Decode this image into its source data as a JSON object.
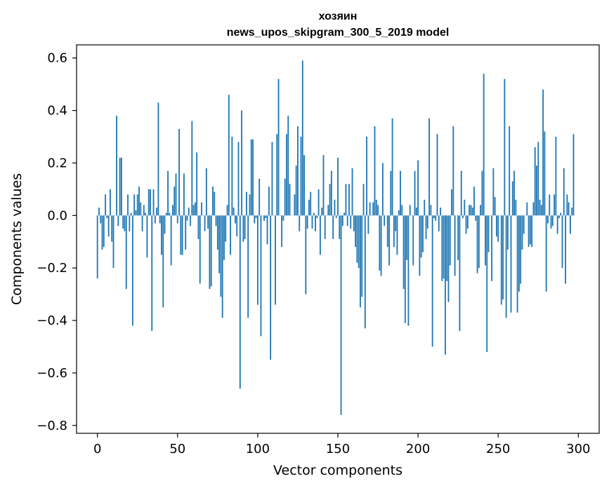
{
  "chart_data": {
    "type": "bar",
    "title": "хозяин",
    "subtitle": "news_upos_skipgram_300_5_2019 model",
    "xlabel": "Vector components",
    "ylabel": "Components values",
    "xlim": [
      -13,
      313
    ],
    "ylim": [
      -0.83,
      0.65
    ],
    "xticks": [
      0,
      50,
      100,
      150,
      200,
      250,
      300
    ],
    "xtick_labels": [
      "0",
      "50",
      "100",
      "150",
      "200",
      "250",
      "300"
    ],
    "yticks": [
      -0.8,
      -0.6,
      -0.4,
      -0.2,
      0.0,
      0.2,
      0.4,
      0.6
    ],
    "ytick_labels": [
      "−0.8",
      "−0.6",
      "−0.4",
      "−0.2",
      "0.0",
      "0.2",
      "0.4",
      "0.6"
    ],
    "bar_color": "#1f77b4",
    "series": [
      {
        "name": "хозяин",
        "x_start": 0,
        "values": [
          -0.24,
          0.03,
          -0.03,
          -0.13,
          -0.12,
          0.08,
          -0.01,
          -0.08,
          0.1,
          -0.1,
          -0.2,
          0.0,
          0.38,
          -0.04,
          0.22,
          0.22,
          -0.05,
          -0.06,
          -0.28,
          0.08,
          -0.06,
          0.01,
          -0.42,
          0.08,
          0.02,
          0.08,
          0.11,
          0.05,
          -0.06,
          0.04,
          0.01,
          -0.16,
          0.1,
          0.1,
          -0.44,
          0.1,
          -0.03,
          0.03,
          0.43,
          -0.03,
          -0.15,
          -0.35,
          -0.07,
          0.01,
          0.17,
          0.01,
          -0.19,
          0.04,
          0.11,
          0.16,
          -0.03,
          0.33,
          -0.15,
          -0.15,
          0.16,
          -0.13,
          -0.02,
          0.03,
          -0.04,
          0.36,
          0.04,
          0.05,
          0.24,
          -0.09,
          -0.26,
          0.05,
          0.0,
          -0.06,
          0.18,
          -0.05,
          -0.28,
          -0.27,
          0.11,
          0.09,
          -0.04,
          -0.13,
          -0.22,
          -0.31,
          -0.39,
          -0.17,
          -0.1,
          0.04,
          0.46,
          -0.15,
          0.3,
          0.03,
          -0.03,
          -0.08,
          0.28,
          -0.66,
          0.4,
          -0.1,
          -0.09,
          0.09,
          -0.39,
          0.08,
          0.29,
          0.29,
          -0.03,
          -0.01,
          -0.34,
          0.14,
          -0.46,
          0.0,
          -0.02,
          -0.01,
          -0.11,
          0.11,
          -0.55,
          0.28,
          0.0,
          -0.34,
          0.31,
          0.52,
          0.0,
          -0.12,
          -0.02,
          0.14,
          0.31,
          0.38,
          0.12,
          0.0,
          0.0,
          0.08,
          0.19,
          0.34,
          -0.06,
          0.3,
          0.59,
          0.23,
          -0.3,
          -0.05,
          0.06,
          0.09,
          -0.05,
          0.01,
          -0.06,
          -0.01,
          0.1,
          -0.15,
          0.03,
          0.23,
          -0.09,
          0.0,
          0.04,
          0.12,
          0.17,
          -0.09,
          0.06,
          -0.01,
          0.22,
          -0.09,
          -0.76,
          -0.04,
          0.01,
          0.12,
          -0.04,
          0.12,
          -0.05,
          0.18,
          -0.06,
          -0.12,
          -0.18,
          -0.2,
          -0.35,
          -0.31,
          0.12,
          -0.43,
          0.3,
          -0.07,
          0.05,
          0.0,
          0.05,
          0.34,
          0.06,
          0.04,
          -0.21,
          -0.23,
          0.2,
          -0.04,
          0.0,
          -0.12,
          -0.19,
          0.17,
          0.37,
          -0.12,
          -0.06,
          -0.15,
          0.02,
          0.17,
          0.04,
          -0.28,
          -0.41,
          -0.17,
          -0.42,
          0.04,
          0.0,
          -0.19,
          0.17,
          0.03,
          0.21,
          -0.23,
          -0.16,
          -0.14,
          0.06,
          -0.09,
          -0.05,
          0.37,
          0.04,
          -0.5,
          -0.01,
          -0.02,
          0.31,
          -0.06,
          0.03,
          -0.25,
          -0.24,
          -0.53,
          -0.25,
          -0.33,
          -0.19,
          0.1,
          0.34,
          -0.23,
          0.0,
          -0.17,
          -0.44,
          0.17,
          -0.01,
          0.06,
          -0.07,
          -0.05,
          0.04,
          0.04,
          0.03,
          0.11,
          -0.02,
          -0.22,
          -0.2,
          0.04,
          0.17,
          0.54,
          -0.19,
          -0.52,
          -0.14,
          0.0,
          -0.25,
          0.18,
          0.07,
          -0.08,
          -0.1,
          0.0,
          -0.34,
          -0.32,
          0.52,
          -0.39,
          -0.13,
          0.34,
          -0.37,
          0.13,
          0.17,
          0.06,
          -0.37,
          -0.29,
          -0.26,
          -0.13,
          -0.07,
          0.0,
          0.05,
          -0.12,
          -0.11,
          -0.12,
          0.05,
          0.26,
          0.19,
          0.28,
          0.06,
          0.04,
          0.48,
          0.32,
          -0.29,
          -0.03,
          0.08,
          -0.05,
          -0.04,
          0.08,
          0.3,
          -0.07,
          -0.01,
          0.01,
          -0.2,
          0.18,
          -0.26,
          0.08,
          0.05,
          -0.07,
          0.03,
          0.31
        ]
      }
    ]
  }
}
